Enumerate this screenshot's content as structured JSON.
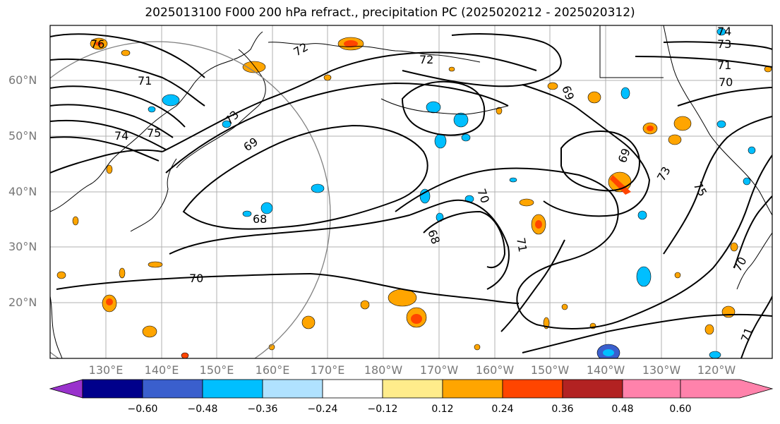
{
  "title": "2025013100 F000 200 hPa refract., precipitation PC (2025020212 - 2025020312)",
  "lat_labels": [
    "60°N",
    "50°N",
    "40°N",
    "30°N",
    "20°N"
  ],
  "lon_labels": [
    "130°E",
    "140°E",
    "150°E",
    "160°E",
    "170°E",
    "180°W",
    "170°W",
    "160°W",
    "150°W",
    "140°W",
    "130°W",
    "120°W"
  ],
  "contour_labels": [
    "76",
    "72",
    "72",
    "71",
    "73",
    "74",
    "75",
    "69",
    "68",
    "70",
    "70",
    "68",
    "71",
    "69",
    "69",
    "73",
    "75",
    "74",
    "73",
    "71",
    "70",
    "70",
    "71"
  ],
  "colorbar": {
    "ticks": [
      "−0.60",
      "−0.48",
      "−0.36",
      "−0.24",
      "−0.12",
      "0.12",
      "0.24",
      "0.36",
      "0.48",
      "0.60"
    ],
    "colors": [
      "#9932cc",
      "#00008b",
      "#3a5fcd",
      "#00bfff",
      "#b0e2ff",
      "#ffffff",
      "#ffec8b",
      "#ffa500",
      "#ff4500",
      "#b22222",
      "#ff82ab"
    ]
  }
}
